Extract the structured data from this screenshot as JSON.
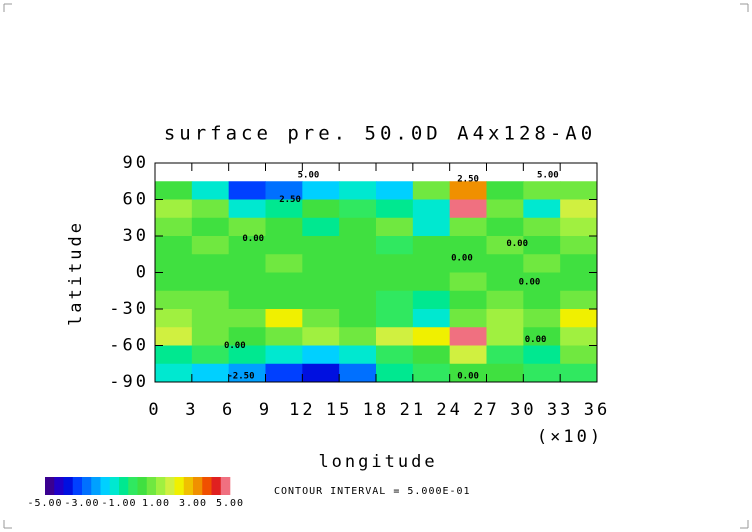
{
  "chart_data": {
    "type": "heatmap",
    "title": "surface pre. 50.0D A4x128-A0",
    "x_label": "longitude",
    "y_label": "latitude",
    "x_multiplier": "(×10)",
    "note": "CONTOUR INTERVAL = 5.000E-01",
    "xlim": [
      0,
      36
    ],
    "ylim": [
      -90,
      90
    ],
    "xticks": [
      0,
      3,
      6,
      9,
      12,
      15,
      18,
      21,
      24,
      27,
      30,
      33,
      36
    ],
    "yticks": [
      -90,
      -60,
      -30,
      0,
      30,
      60,
      90
    ],
    "x": [
      1.5,
      4.5,
      7.5,
      10.5,
      13.5,
      16.5,
      19.5,
      22.5,
      25.5,
      28.5,
      31.5,
      34.5
    ],
    "y": [
      82.5,
      67.5,
      52.5,
      37.5,
      22.5,
      7.5,
      -7.5,
      -22.5,
      -37.5,
      -52.5,
      -67.5,
      -82.5
    ],
    "z": [
      [
        null,
        null,
        null,
        null,
        null,
        null,
        null,
        null,
        null,
        null,
        null,
        null
      ],
      [
        0,
        -1.5,
        -3.5,
        -3,
        -2,
        -1.5,
        -2,
        0.5,
        3,
        0,
        0.5,
        0.5
      ],
      [
        1,
        0.5,
        -1.5,
        -1,
        0,
        -0.5,
        -1,
        -1.5,
        4.5,
        0.5,
        -1.5,
        1.5
      ],
      [
        0.5,
        0,
        0.5,
        0,
        -1,
        0,
        0.5,
        -1.5,
        0.5,
        0,
        0.5,
        1
      ],
      [
        0,
        0.5,
        0,
        0,
        0,
        0,
        -0.5,
        0,
        0,
        0.5,
        0,
        0.5
      ],
      [
        0,
        0,
        0,
        0.5,
        0,
        0,
        0,
        0,
        0,
        0,
        0.5,
        0
      ],
      [
        0,
        0,
        0,
        0,
        0,
        0,
        0,
        0,
        0.5,
        0,
        0,
        0
      ],
      [
        0.5,
        0.5,
        0,
        0,
        0,
        0,
        -0.5,
        -1,
        0,
        0.5,
        0,
        0.5
      ],
      [
        1,
        0.5,
        0.5,
        2,
        0.5,
        0,
        -0.5,
        -1.5,
        0.5,
        1,
        0.5,
        2
      ],
      [
        1.5,
        0.5,
        0,
        0.5,
        1,
        0.5,
        1.5,
        2,
        4.5,
        1,
        0,
        1
      ],
      [
        -1,
        -0.5,
        -1,
        -1.5,
        -2,
        -1.5,
        -0.5,
        0,
        1.5,
        -0.5,
        -1,
        0.5
      ],
      [
        -1.5,
        -2,
        -2.5,
        -3.5,
        -4,
        -3,
        -1,
        -0.5,
        0,
        0,
        -0.5,
        -0.5
      ]
    ],
    "colors": [
      "#3a0090",
      "#2000c8",
      "#0010e0",
      "#0040ff",
      "#0070ff",
      "#00a0ff",
      "#00d0ff",
      "#00e8d0",
      "#00e890",
      "#30e860",
      "#40e040",
      "#70e840",
      "#a0f040",
      "#d0f040",
      "#f0f000",
      "#f0c000",
      "#f09000",
      "#f05000",
      "#e02020",
      "#f07080"
    ],
    "colorbar": {
      "lim": [
        -5,
        5
      ],
      "ticks": [
        {
          "value": -5,
          "label": "-5.00"
        },
        {
          "value": -3,
          "label": "-3.00"
        },
        {
          "value": -1,
          "label": "-1.00"
        },
        {
          "value": 1,
          "label": "1.00"
        },
        {
          "value": 3,
          "label": "3.00"
        },
        {
          "value": 5,
          "label": "5.00"
        }
      ]
    },
    "contour_labels": [
      {
        "value": 5,
        "label": "5.00",
        "x": 12.5,
        "y": 80
      },
      {
        "value": 2.5,
        "label": "2.50",
        "x": 11,
        "y": 60
      },
      {
        "value": 0,
        "label": "0.00",
        "x": 8,
        "y": 28
      },
      {
        "value": 2.5,
        "label": "2.50",
        "x": 25.5,
        "y": 77
      },
      {
        "value": 5,
        "label": "5.00",
        "x": 32,
        "y": 80
      },
      {
        "value": 0,
        "label": "0.00",
        "x": 29.5,
        "y": 24
      },
      {
        "value": 0,
        "label": "0.00",
        "x": 25,
        "y": 12
      },
      {
        "value": 0,
        "label": "0.00",
        "x": 30.5,
        "y": -8
      },
      {
        "value": 0,
        "label": "0.00",
        "x": 31,
        "y": -55
      },
      {
        "value": 0,
        "label": "0.00",
        "x": 6.5,
        "y": -60
      },
      {
        "value": -2.5,
        "label": "-2.50",
        "x": 7,
        "y": -85
      },
      {
        "value": 0,
        "label": "0.00",
        "x": 25.5,
        "y": -85
      }
    ]
  }
}
